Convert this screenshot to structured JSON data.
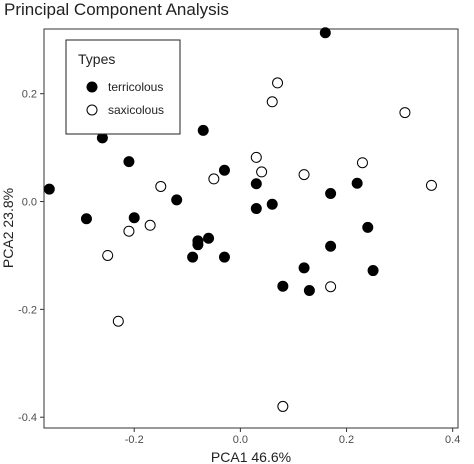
{
  "chart_data": {
    "type": "scatter",
    "title": "Principal Component Analysis",
    "xlabel": "PCA1 46.6%",
    "ylabel": "PCA2 23.8%",
    "xlim": [
      -0.37,
      0.41
    ],
    "ylim": [
      -0.42,
      0.32
    ],
    "x_ticks": [
      -0.2,
      0.0,
      0.2,
      0.4
    ],
    "x_tick_labels": [
      "-0.2",
      "0.0",
      "0.2",
      "0.4"
    ],
    "y_ticks": [
      0.2,
      0.0,
      -0.2,
      -0.4
    ],
    "y_tick_labels": [
      "0.2",
      "0.0",
      "-0.2",
      "-0.4"
    ],
    "grid": false,
    "legend": {
      "title": "Types",
      "placement": "top-left",
      "entries": [
        "terricolous",
        "saxicolous"
      ]
    },
    "series": [
      {
        "name": "terricolous",
        "marker": "filled-circle",
        "x": [
          -0.36,
          -0.29,
          -0.26,
          -0.21,
          -0.2,
          -0.12,
          -0.09,
          -0.08,
          -0.08,
          -0.07,
          -0.06,
          -0.03,
          -0.03,
          0.03,
          0.03,
          0.06,
          0.08,
          0.12,
          0.13,
          0.16,
          0.17,
          0.17,
          0.22,
          0.24,
          0.25
        ],
        "y": [
          0.023,
          -0.032,
          0.118,
          0.074,
          -0.03,
          0.003,
          -0.103,
          -0.08,
          -0.073,
          0.132,
          -0.068,
          -0.103,
          0.058,
          0.033,
          -0.013,
          -0.005,
          -0.157,
          -0.123,
          -0.165,
          0.313,
          0.015,
          -0.083,
          0.034,
          -0.048,
          -0.128
        ]
      },
      {
        "name": "saxicolous",
        "marker": "open-circle",
        "x": [
          -0.25,
          -0.23,
          -0.21,
          -0.17,
          -0.15,
          -0.05,
          0.03,
          0.04,
          0.06,
          0.07,
          0.08,
          0.12,
          0.17,
          0.23,
          0.31,
          0.36
        ],
        "y": [
          -0.1,
          -0.222,
          -0.055,
          -0.044,
          0.028,
          0.042,
          0.082,
          0.055,
          0.185,
          0.22,
          -0.38,
          0.05,
          -0.158,
          0.072,
          0.165,
          0.03
        ]
      }
    ]
  }
}
